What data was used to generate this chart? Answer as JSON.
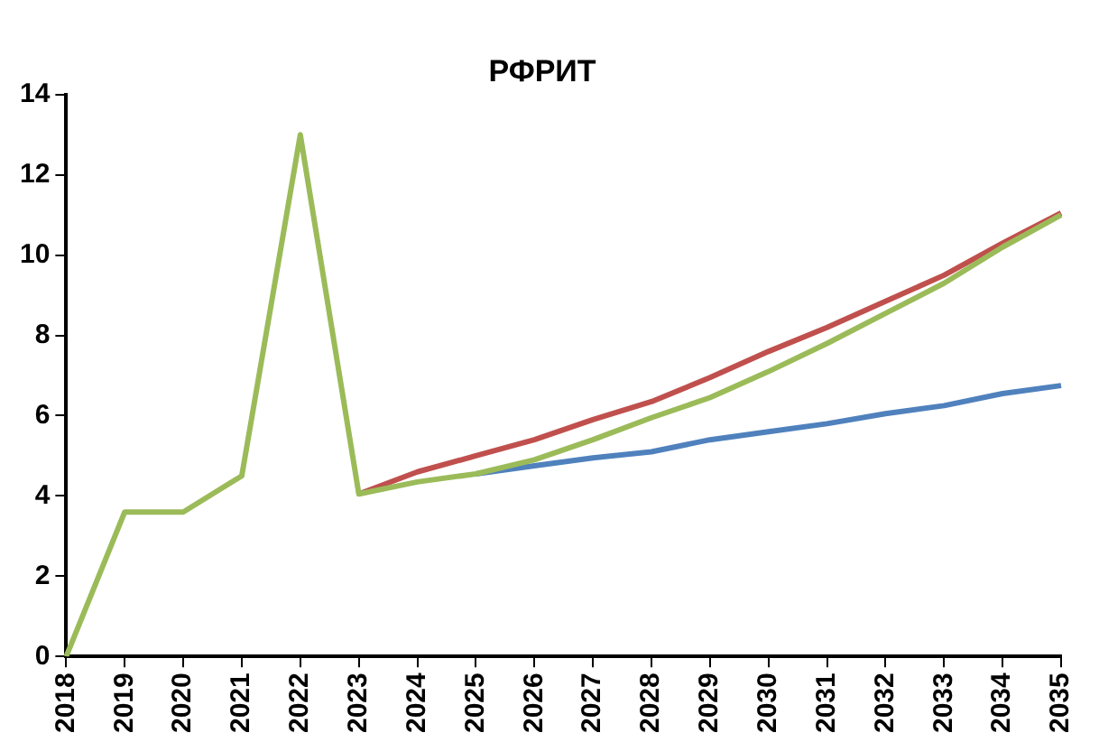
{
  "chart_data": {
    "type": "line",
    "title": "РФРИТ",
    "categories": [
      "2018",
      "2019",
      "2020",
      "2021",
      "2022",
      "2023",
      "2024",
      "2025",
      "2026",
      "2027",
      "2028",
      "2029",
      "2030",
      "2031",
      "2032",
      "2033",
      "2034",
      "2035"
    ],
    "series": [
      {
        "color": "#9bbb59",
        "values": [
          0,
          3.6,
          3.6,
          4.5,
          13,
          4.05,
          4.35,
          4.55,
          4.9,
          5.4,
          5.95,
          6.45,
          7.1,
          7.8,
          8.55,
          9.3,
          10.2,
          11.0
        ]
      },
      {
        "color": "#c0504d",
        "values": [
          null,
          null,
          null,
          null,
          null,
          4.05,
          4.6,
          5.0,
          5.4,
          5.9,
          6.35,
          6.95,
          7.6,
          8.2,
          8.85,
          9.5,
          10.3,
          11.05
        ]
      },
      {
        "color": "#4f81bd",
        "values": [
          null,
          null,
          null,
          null,
          null,
          null,
          null,
          4.55,
          4.75,
          4.95,
          5.1,
          5.4,
          5.6,
          5.8,
          6.05,
          6.25,
          6.55,
          6.75
        ]
      }
    ],
    "ylim": [
      0,
      14
    ],
    "yticks": [
      0,
      2,
      4,
      6,
      8,
      10,
      12,
      14
    ],
    "grid": false,
    "legend": false,
    "marker": "none",
    "line_style": "solid"
  }
}
